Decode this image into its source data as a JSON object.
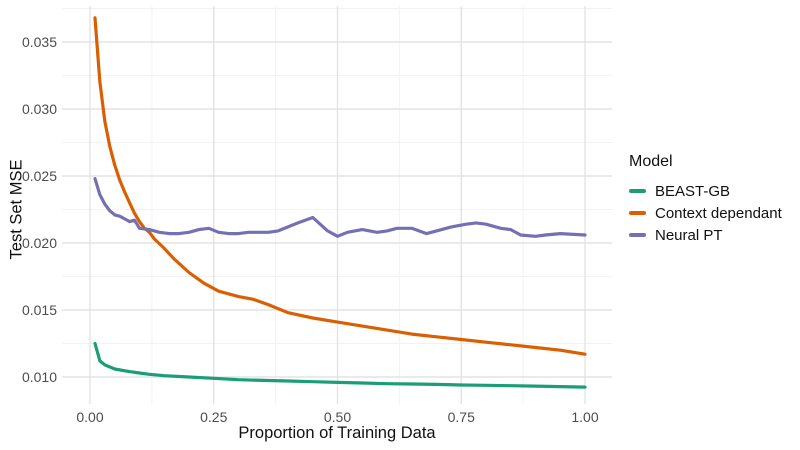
{
  "figure": {
    "background": "#ffffff"
  },
  "axes": {
    "x_title": "Proportion of Training Data",
    "y_title": "Test Set MSE"
  },
  "legend": {
    "title": "Model"
  },
  "colors": {
    "grid_major": "#e3e3e3",
    "grid_minor": "#f2f2f2",
    "tick_text": "#4d4d4d",
    "title_text": "#111111"
  },
  "chart_data": {
    "type": "line",
    "title": "",
    "xlabel": "Proportion of Training Data",
    "ylabel": "Test Set MSE",
    "legend_title": "Model",
    "legend_position": "right",
    "grid": "major+minor",
    "xlim": [
      -0.04,
      1.05
    ],
    "ylim": [
      0.0079,
      0.0382
    ],
    "xticks": {
      "values": [
        0,
        0.25,
        0.5,
        0.75,
        1.0
      ],
      "labels": [
        "0.00",
        "0.25",
        "0.50",
        "0.75",
        "1.00"
      ]
    },
    "yticks": {
      "values": [
        0.01,
        0.015,
        0.02,
        0.025,
        0.03,
        0.035
      ],
      "labels": [
        "0.010",
        "0.015",
        "0.020",
        "0.025",
        "0.030",
        "0.035"
      ]
    },
    "xticks_minor": [
      0.125,
      0.375,
      0.625,
      0.875
    ],
    "yticks_minor": [
      0.0125,
      0.0175,
      0.0225,
      0.0275,
      0.0325,
      0.0375
    ],
    "series": [
      {
        "name": "BEAST-GB",
        "color": "#1B9E77",
        "x": [
          0.01,
          0.02,
          0.03,
          0.05,
          0.08,
          0.1,
          0.12,
          0.15,
          0.2,
          0.25,
          0.3,
          0.35,
          0.4,
          0.45,
          0.5,
          0.55,
          0.6,
          0.65,
          0.7,
          0.75,
          0.8,
          0.85,
          0.9,
          0.95,
          1.0
        ],
        "y": [
          0.0125,
          0.0112,
          0.0109,
          0.0106,
          0.0104,
          0.0103,
          0.0102,
          0.0101,
          0.01,
          0.0099,
          0.0098,
          0.00975,
          0.0097,
          0.00965,
          0.0096,
          0.00955,
          0.0095,
          0.00948,
          0.00945,
          0.0094,
          0.00938,
          0.00935,
          0.00932,
          0.00928,
          0.00925
        ]
      },
      {
        "name": "Context dependant",
        "color": "#D95F02",
        "x": [
          0.01,
          0.02,
          0.03,
          0.04,
          0.05,
          0.06,
          0.07,
          0.08,
          0.09,
          0.1,
          0.11,
          0.12,
          0.13,
          0.15,
          0.17,
          0.2,
          0.23,
          0.26,
          0.3,
          0.33,
          0.36,
          0.4,
          0.45,
          0.5,
          0.55,
          0.6,
          0.65,
          0.7,
          0.75,
          0.8,
          0.85,
          0.9,
          0.95,
          1.0
        ],
        "y": [
          0.0368,
          0.032,
          0.0291,
          0.0272,
          0.0258,
          0.0247,
          0.0238,
          0.023,
          0.0222,
          0.0216,
          0.0211,
          0.0208,
          0.0203,
          0.0196,
          0.0188,
          0.0178,
          0.017,
          0.0164,
          0.016,
          0.0158,
          0.0154,
          0.0148,
          0.0144,
          0.0141,
          0.0138,
          0.0135,
          0.0132,
          0.013,
          0.0128,
          0.0126,
          0.0124,
          0.0122,
          0.012,
          0.0117
        ]
      },
      {
        "name": "Neural PT",
        "color": "#7570B3",
        "x": [
          0.01,
          0.02,
          0.03,
          0.04,
          0.05,
          0.06,
          0.07,
          0.08,
          0.09,
          0.1,
          0.12,
          0.14,
          0.16,
          0.18,
          0.2,
          0.22,
          0.24,
          0.26,
          0.28,
          0.3,
          0.32,
          0.34,
          0.36,
          0.38,
          0.4,
          0.42,
          0.45,
          0.48,
          0.5,
          0.52,
          0.55,
          0.58,
          0.6,
          0.62,
          0.65,
          0.68,
          0.7,
          0.73,
          0.76,
          0.78,
          0.8,
          0.83,
          0.85,
          0.87,
          0.9,
          0.92,
          0.95,
          1.0
        ],
        "y": [
          0.0248,
          0.0236,
          0.0229,
          0.0224,
          0.0221,
          0.022,
          0.0218,
          0.0216,
          0.0217,
          0.0211,
          0.021,
          0.0208,
          0.0207,
          0.0207,
          0.0208,
          0.021,
          0.0211,
          0.0208,
          0.0207,
          0.0207,
          0.0208,
          0.0208,
          0.0208,
          0.0209,
          0.0212,
          0.0215,
          0.0219,
          0.0209,
          0.0205,
          0.0208,
          0.021,
          0.0208,
          0.0209,
          0.0211,
          0.0211,
          0.0207,
          0.0209,
          0.0212,
          0.0214,
          0.0215,
          0.0214,
          0.0211,
          0.021,
          0.0206,
          0.0205,
          0.0206,
          0.0207,
          0.0206
        ]
      }
    ]
  }
}
